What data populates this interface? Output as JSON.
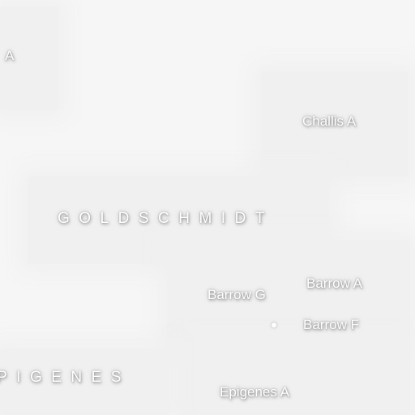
{
  "map": {
    "background_color": "#f6f6f6",
    "label_color": "#ffffff",
    "labels": {
      "cut_off_a": "A",
      "challis_a": "Challis A",
      "goldschmidt": "GOLDSCHMIDT",
      "barrow_a": "Barrow A",
      "barrow_g": "Barrow G",
      "barrow_f": "Barrow F",
      "epigenes": "PIGENES",
      "epigenes_a": "Epigenes A"
    }
  }
}
